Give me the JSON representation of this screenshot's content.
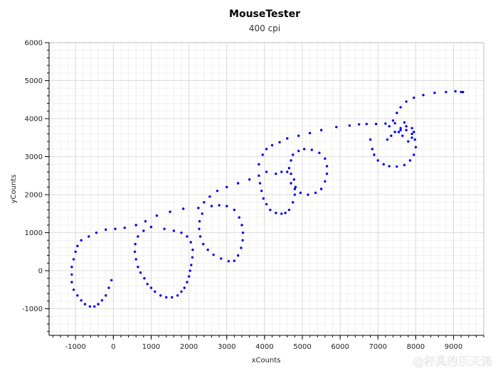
{
  "watermark": "@杯具的乐天派",
  "chart_data": {
    "type": "scatter",
    "title": "MouseTester",
    "subtitle": "400 cpi",
    "xlabel": "xCounts",
    "ylabel": "yCounts",
    "xlim": [
      -1700,
      9800
    ],
    "ylim": [
      -1700,
      6000
    ],
    "xticks": [
      -1000,
      0,
      1000,
      2000,
      3000,
      4000,
      5000,
      6000,
      7000,
      8000,
      9000
    ],
    "yticks": [
      -1000,
      0,
      1000,
      2000,
      3000,
      4000,
      5000,
      6000
    ],
    "grid": true,
    "marker_color": "#0000ff",
    "series": [
      {
        "values": [
          [
            -1100,
            -100
          ],
          [
            -1100,
            100
          ],
          [
            -1050,
            300
          ],
          [
            -1000,
            500
          ],
          [
            -950,
            650
          ],
          [
            -850,
            800
          ],
          [
            -650,
            900
          ],
          [
            -450,
            1000
          ],
          [
            -200,
            1080
          ],
          [
            50,
            1100
          ],
          [
            300,
            1130
          ],
          [
            600,
            1200
          ],
          [
            850,
            1300
          ],
          [
            1150,
            1450
          ],
          [
            1500,
            1550
          ],
          [
            1850,
            1630
          ],
          [
            -1100,
            -300
          ],
          [
            -1050,
            -500
          ],
          [
            -950,
            -650
          ],
          [
            -850,
            -780
          ],
          [
            -750,
            -880
          ],
          [
            -620,
            -940
          ],
          [
            -500,
            -940
          ],
          [
            -400,
            -880
          ],
          [
            -300,
            -780
          ],
          [
            -200,
            -650
          ],
          [
            -120,
            -450
          ],
          [
            -50,
            -250
          ],
          [
            1000,
            1150
          ],
          [
            800,
            1050
          ],
          [
            650,
            900
          ],
          [
            580,
            700
          ],
          [
            570,
            500
          ],
          [
            600,
            300
          ],
          [
            650,
            100
          ],
          [
            720,
            -50
          ],
          [
            820,
            -200
          ],
          [
            900,
            -350
          ],
          [
            1000,
            -450
          ],
          [
            1100,
            -550
          ],
          [
            1250,
            -650
          ],
          [
            1400,
            -700
          ],
          [
            1550,
            -700
          ],
          [
            1700,
            -650
          ],
          [
            1800,
            -550
          ],
          [
            1880,
            -450
          ],
          [
            1950,
            -300
          ],
          [
            2000,
            -150
          ],
          [
            2030,
            0
          ],
          [
            2060,
            150
          ],
          [
            2090,
            350
          ],
          [
            2100,
            550
          ],
          [
            2050,
            750
          ],
          [
            1950,
            900
          ],
          [
            1800,
            1000
          ],
          [
            1600,
            1050
          ],
          [
            1350,
            1100
          ],
          [
            2250,
            1650
          ],
          [
            2400,
            1800
          ],
          [
            2550,
            1950
          ],
          [
            2750,
            2100
          ],
          [
            3000,
            2200
          ],
          [
            3300,
            2300
          ],
          [
            3600,
            2400
          ],
          [
            3850,
            2500
          ],
          [
            4050,
            2600
          ],
          [
            2350,
            1500
          ],
          [
            2280,
            1300
          ],
          [
            2270,
            1100
          ],
          [
            2300,
            900
          ],
          [
            2380,
            700
          ],
          [
            2500,
            550
          ],
          [
            2650,
            420
          ],
          [
            2850,
            320
          ],
          [
            3050,
            250
          ],
          [
            3200,
            260
          ],
          [
            3300,
            400
          ],
          [
            3380,
            600
          ],
          [
            3420,
            800
          ],
          [
            3430,
            1000
          ],
          [
            3400,
            1200
          ],
          [
            3330,
            1400
          ],
          [
            3200,
            1600
          ],
          [
            3000,
            1700
          ],
          [
            2800,
            1720
          ],
          [
            2600,
            1700
          ],
          [
            3850,
            2800
          ],
          [
            3950,
            3050
          ],
          [
            4050,
            3200
          ],
          [
            4200,
            3300
          ],
          [
            4400,
            3380
          ],
          [
            4600,
            3480
          ],
          [
            4900,
            3550
          ],
          [
            5200,
            3620
          ],
          [
            5500,
            3700
          ],
          [
            5900,
            3780
          ],
          [
            6250,
            3820
          ],
          [
            3880,
            2300
          ],
          [
            3920,
            2100
          ],
          [
            3970,
            1900
          ],
          [
            4050,
            1750
          ],
          [
            4150,
            1600
          ],
          [
            4300,
            1520
          ],
          [
            4450,
            1500
          ],
          [
            4550,
            1520
          ],
          [
            4650,
            1600
          ],
          [
            4750,
            1800
          ],
          [
            4800,
            2000
          ],
          [
            4820,
            2200
          ],
          [
            4780,
            2400
          ],
          [
            4700,
            2550
          ],
          [
            4600,
            2600
          ],
          [
            4450,
            2600
          ],
          [
            4300,
            2550
          ],
          [
            4650,
            2700
          ],
          [
            4700,
            2900
          ],
          [
            4750,
            3050
          ],
          [
            4900,
            3150
          ],
          [
            5050,
            3200
          ],
          [
            5250,
            3180
          ],
          [
            5450,
            3100
          ],
          [
            5600,
            2950
          ],
          [
            5650,
            2750
          ],
          [
            5650,
            2550
          ],
          [
            5600,
            2350
          ],
          [
            5500,
            2150
          ],
          [
            5350,
            2050
          ],
          [
            5150,
            2000
          ],
          [
            4950,
            2050
          ],
          [
            4800,
            2150
          ],
          [
            4700,
            2300
          ],
          [
            6500,
            3850
          ],
          [
            6700,
            3860
          ],
          [
            6950,
            3860
          ],
          [
            7200,
            3870
          ],
          [
            7450,
            3880
          ],
          [
            7700,
            3900
          ],
          [
            6800,
            3450
          ],
          [
            6850,
            3200
          ],
          [
            6900,
            3050
          ],
          [
            7000,
            2900
          ],
          [
            7150,
            2800
          ],
          [
            7300,
            2750
          ],
          [
            7500,
            2740
          ],
          [
            7700,
            2780
          ],
          [
            7850,
            2900
          ],
          [
            7950,
            3050
          ],
          [
            8000,
            3250
          ],
          [
            7980,
            3450
          ],
          [
            7900,
            3600
          ],
          [
            7750,
            3700
          ],
          [
            7600,
            3700
          ],
          [
            7450,
            3650
          ],
          [
            7350,
            3550
          ],
          [
            7250,
            3450
          ],
          [
            7300,
            3800
          ],
          [
            7400,
            3950
          ],
          [
            7500,
            4150
          ],
          [
            7600,
            4300
          ],
          [
            7750,
            4450
          ],
          [
            7950,
            4550
          ],
          [
            8200,
            4620
          ],
          [
            8500,
            4680
          ],
          [
            8800,
            4700
          ],
          [
            9050,
            4720
          ],
          [
            9200,
            4700
          ],
          [
            9250,
            4700
          ],
          [
            7650,
            3550
          ],
          [
            7800,
            3400
          ],
          [
            7900,
            3500
          ],
          [
            7950,
            3650
          ],
          [
            7900,
            3750
          ],
          [
            7750,
            3800
          ],
          [
            7600,
            3750
          ],
          [
            7550,
            3650
          ]
        ]
      }
    ]
  }
}
